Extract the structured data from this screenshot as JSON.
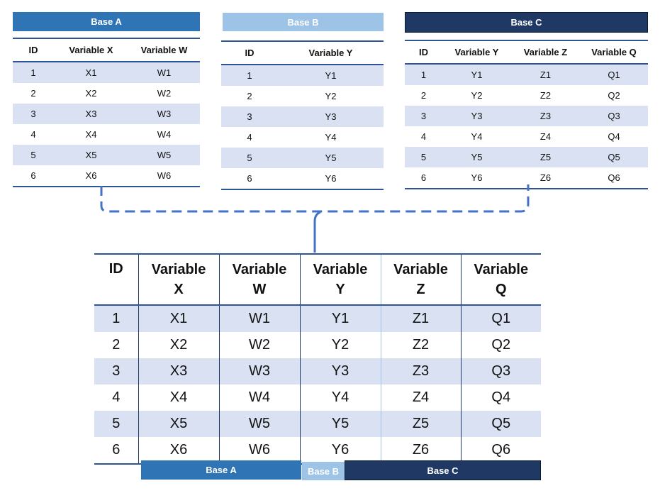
{
  "base_a": {
    "title": "Base A",
    "headers": [
      "ID",
      "Variable X",
      "Variable W"
    ],
    "rows": [
      [
        "1",
        "X1",
        "W1"
      ],
      [
        "2",
        "X2",
        "W2"
      ],
      [
        "3",
        "X3",
        "W3"
      ],
      [
        "4",
        "X4",
        "W4"
      ],
      [
        "5",
        "X5",
        "W5"
      ],
      [
        "6",
        "X6",
        "W6"
      ]
    ]
  },
  "base_b": {
    "title": "Base B",
    "headers": [
      "ID",
      "Variable Y"
    ],
    "rows": [
      [
        "1",
        "Y1"
      ],
      [
        "2",
        "Y2"
      ],
      [
        "3",
        "Y3"
      ],
      [
        "4",
        "Y4"
      ],
      [
        "5",
        "Y5"
      ],
      [
        "6",
        "Y6"
      ]
    ]
  },
  "base_c": {
    "title": "Base C",
    "headers": [
      "ID",
      "Variable Y",
      "Variable Z",
      "Variable Q"
    ],
    "rows": [
      [
        "1",
        "Y1",
        "Z1",
        "Q1"
      ],
      [
        "2",
        "Y2",
        "Z2",
        "Q2"
      ],
      [
        "3",
        "Y3",
        "Z3",
        "Q3"
      ],
      [
        "4",
        "Y4",
        "Z4",
        "Q4"
      ],
      [
        "5",
        "Y5",
        "Z5",
        "Q5"
      ],
      [
        "6",
        "Y6",
        "Z6",
        "Q6"
      ]
    ]
  },
  "merged": {
    "headers": [
      {
        "l1": "ID",
        "l2": ""
      },
      {
        "l1": "Variable",
        "l2": "X"
      },
      {
        "l1": "Variable",
        "l2": "W"
      },
      {
        "l1": "Variable",
        "l2": "Y"
      },
      {
        "l1": "Variable",
        "l2": "Z"
      },
      {
        "l1": "Variable",
        "l2": "Q"
      }
    ],
    "rows": [
      [
        "1",
        "X1",
        "W1",
        "Y1",
        "Z1",
        "Q1"
      ],
      [
        "2",
        "X2",
        "W2",
        "Y2",
        "Z2",
        "Q2"
      ],
      [
        "3",
        "X3",
        "W3",
        "Y3",
        "Z3",
        "Q3"
      ],
      [
        "4",
        "X4",
        "W4",
        "Y4",
        "Z4",
        "Q4"
      ],
      [
        "5",
        "X5",
        "W5",
        "Y5",
        "Z5",
        "Q5"
      ],
      [
        "6",
        "X6",
        "W6",
        "Y6",
        "Z6",
        "Q6"
      ]
    ],
    "footer_labels": {
      "a": "Base A",
      "b": "Base B",
      "c": "Base C"
    }
  },
  "colors": {
    "base_a": "#2f75b5",
    "base_b": "#9dc3e6",
    "base_c": "#1f3864",
    "row_stripe": "#d9e1f2",
    "connector": "#4472c4"
  }
}
